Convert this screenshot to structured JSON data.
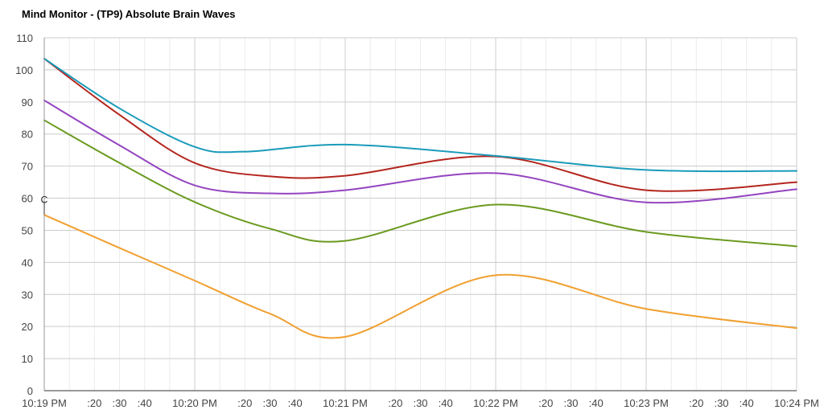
{
  "chart_data": {
    "type": "line",
    "title": "Mind Monitor - (TP9) Absolute Brain Waves",
    "ylim": [
      0,
      110
    ],
    "y_ticks": [
      0,
      10,
      20,
      30,
      40,
      50,
      60,
      70,
      80,
      90,
      100,
      110
    ],
    "xlim": [
      0,
      300
    ],
    "x_ticks": [
      {
        "x": 0,
        "label": "10:19 PM"
      },
      {
        "x": 20,
        "label": ":20"
      },
      {
        "x": 30,
        "label": ":30"
      },
      {
        "x": 40,
        "label": ":40"
      },
      {
        "x": 60,
        "label": "10:20 PM"
      },
      {
        "x": 80,
        "label": ":20"
      },
      {
        "x": 90,
        "label": ":30"
      },
      {
        "x": 100,
        "label": ":40"
      },
      {
        "x": 120,
        "label": "10:21 PM"
      },
      {
        "x": 140,
        "label": ":20"
      },
      {
        "x": 150,
        "label": ":30"
      },
      {
        "x": 160,
        "label": ":40"
      },
      {
        "x": 180,
        "label": "10:22 PM"
      },
      {
        "x": 200,
        "label": ":20"
      },
      {
        "x": 210,
        "label": ":30"
      },
      {
        "x": 220,
        "label": ":40"
      },
      {
        "x": 240,
        "label": "10:23 PM"
      },
      {
        "x": 260,
        "label": ":20"
      },
      {
        "x": 270,
        "label": ":30"
      },
      {
        "x": 280,
        "label": ":40"
      },
      {
        "x": 300,
        "label": "10:24 PM"
      }
    ],
    "major_x": [
      0,
      60,
      120,
      180,
      240,
      300
    ],
    "minor_x": [
      10,
      20,
      30,
      40,
      50,
      70,
      80,
      90,
      100,
      110,
      130,
      140,
      150,
      160,
      170,
      190,
      200,
      210,
      220,
      230,
      250,
      260,
      270,
      280,
      290
    ],
    "grid": true,
    "annotation": {
      "text": "C",
      "x": 0,
      "y": 60
    },
    "series": [
      {
        "color": "#1a9bba",
        "x": [
          0,
          30,
          60,
          80,
          120,
          180,
          240,
          300
        ],
        "values": [
          103.5,
          88,
          76,
          74.5,
          76.7,
          73.2,
          68.8,
          68.5
        ]
      },
      {
        "color": "#b3261e",
        "x": [
          0,
          30,
          60,
          90,
          120,
          180,
          240,
          300
        ],
        "values": [
          103.5,
          86,
          71,
          66.8,
          67,
          73,
          62.5,
          65
        ]
      },
      {
        "color": "#9444c0",
        "x": [
          0,
          30,
          60,
          90,
          120,
          180,
          240,
          300
        ],
        "values": [
          90.5,
          76.5,
          64,
          61.5,
          62.5,
          67.8,
          58.7,
          62.8
        ]
      },
      {
        "color": "#6a9a1f",
        "x": [
          0,
          30,
          60,
          90,
          120,
          180,
          240,
          300
        ],
        "values": [
          84.3,
          71,
          58.8,
          50.5,
          46.7,
          58,
          49.5,
          45
        ]
      },
      {
        "color": "#f0a030",
        "x": [
          0,
          30,
          60,
          90,
          120,
          180,
          240,
          300
        ],
        "values": [
          54.8,
          44.5,
          34.3,
          24,
          16.8,
          36,
          25.5,
          19.5
        ]
      }
    ]
  }
}
